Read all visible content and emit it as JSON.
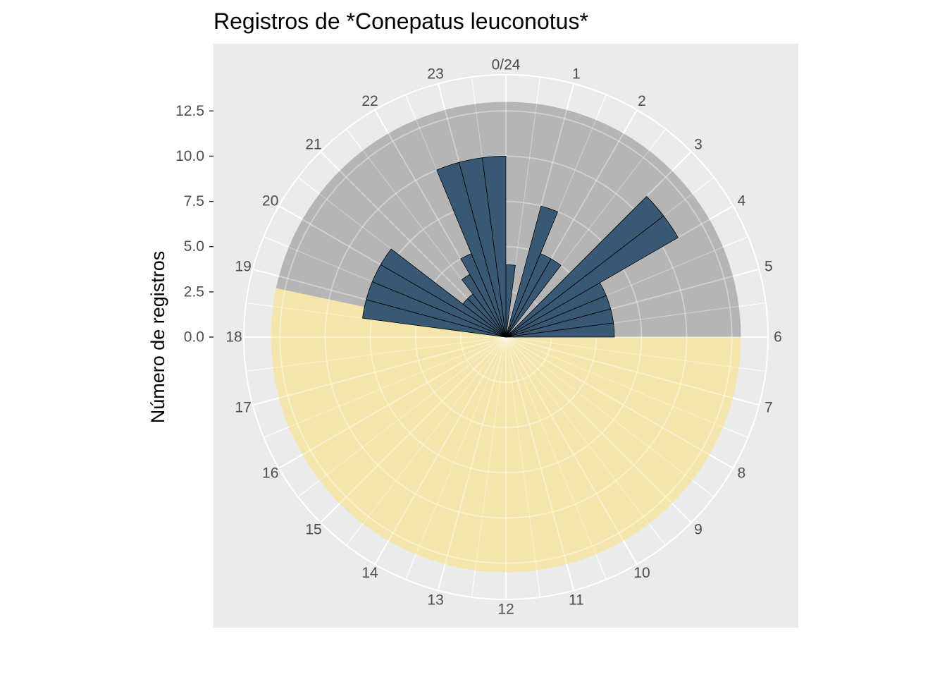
{
  "chart_data": {
    "type": "bar",
    "coordinate_system": "polar",
    "title": "Registros de *Conepatus leuconotus*",
    "xlabel": "",
    "ylabel": "Número de registros",
    "x_tick_labels": [
      "0/24",
      "1",
      "2",
      "3",
      "4",
      "5",
      "6",
      "7",
      "8",
      "9",
      "10",
      "11",
      "12",
      "13",
      "14",
      "15",
      "16",
      "17",
      "18",
      "19",
      "20",
      "21",
      "22",
      "23"
    ],
    "y_tick_labels": [
      "0.0",
      "2.5",
      "5.0",
      "7.5",
      "10.0",
      "12.5"
    ],
    "y_ticks": [
      0,
      2.5,
      5,
      7.5,
      10,
      12.5
    ],
    "ylim": [
      0,
      14.5
    ],
    "bin_minutes": 30,
    "bins": [
      {
        "start": 0.0,
        "end": 0.5,
        "value": 4
      },
      {
        "start": 0.5,
        "end": 1.0,
        "value": 0
      },
      {
        "start": 1.0,
        "end": 1.5,
        "value": 7.5
      },
      {
        "start": 1.5,
        "end": 2.0,
        "value": 5
      },
      {
        "start": 2.0,
        "end": 2.5,
        "value": 5
      },
      {
        "start": 2.5,
        "end": 3.0,
        "value": 0
      },
      {
        "start": 3.0,
        "end": 3.5,
        "value": 11
      },
      {
        "start": 3.5,
        "end": 4.0,
        "value": 11
      },
      {
        "start": 4.0,
        "end": 4.5,
        "value": 6
      },
      {
        "start": 4.5,
        "end": 5.0,
        "value": 6
      },
      {
        "start": 5.0,
        "end": 5.5,
        "value": 6
      },
      {
        "start": 5.5,
        "end": 6.0,
        "value": 6
      },
      {
        "start": 18.0,
        "end": 18.5,
        "value": 0
      },
      {
        "start": 18.5,
        "end": 19.0,
        "value": 8
      },
      {
        "start": 19.0,
        "end": 19.5,
        "value": 8
      },
      {
        "start": 19.5,
        "end": 20.0,
        "value": 8
      },
      {
        "start": 20.0,
        "end": 20.5,
        "value": 8
      },
      {
        "start": 20.5,
        "end": 21.0,
        "value": 3
      },
      {
        "start": 21.0,
        "end": 21.5,
        "value": 3
      },
      {
        "start": 21.5,
        "end": 22.0,
        "value": 4
      },
      {
        "start": 22.0,
        "end": 22.5,
        "value": 5
      },
      {
        "start": 22.5,
        "end": 23.0,
        "value": 10
      },
      {
        "start": 23.0,
        "end": 23.5,
        "value": 10
      },
      {
        "start": 23.5,
        "end": 24.0,
        "value": 10
      }
    ],
    "shaded_regions": [
      {
        "name": "night",
        "start_hour": 18.8,
        "end_hour": 6.0,
        "value": 13,
        "color": "#b5b5b5"
      },
      {
        "name": "day",
        "start_hour": 6.0,
        "end_hour": 18.8,
        "value": 13,
        "color": "#f4e4a0",
        "opacity": 0.85
      }
    ],
    "colors": {
      "bar_fill": "#395874",
      "bar_stroke": "#000000",
      "panel_background": "#ebebeb",
      "grid": "#ffffff"
    },
    "grid": true,
    "legend": "none"
  }
}
